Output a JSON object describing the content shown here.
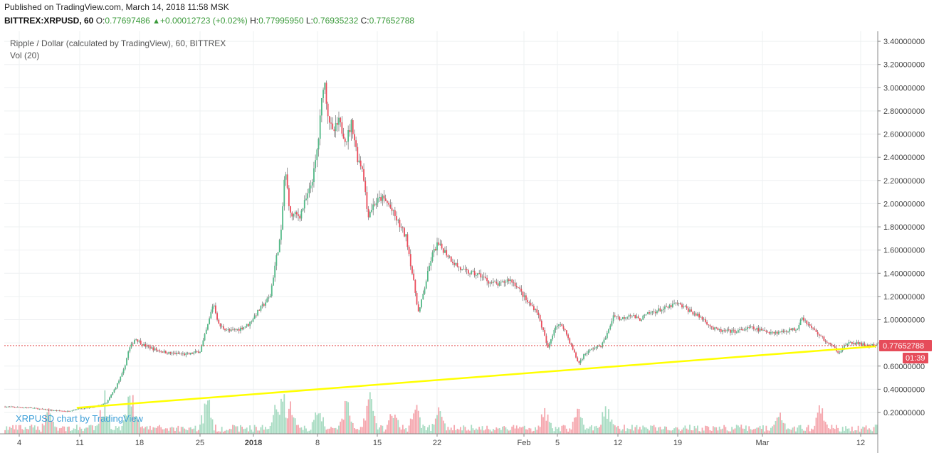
{
  "header": {
    "published": "Published on TradingView.com, March 14, 2018 11:58 MSK",
    "symbol": "BITTREX:XRPUSD, 60",
    "open_label": "O:",
    "open": "0.77697486",
    "change": "+0.00012723 (+0.02%)",
    "high_label": "H:",
    "high": "0.77995950",
    "low_label": "L:",
    "low": "0.76935232",
    "close_label": "C:",
    "close": "0.77652788"
  },
  "chart_data": {
    "type": "candlestick",
    "title": "Ripple / Dollar (calculated by TradingView), 60, BITTREX",
    "indicator": "Vol (20)",
    "watermark": "XRPUSD chart by TradingView",
    "ylim": [
      0.05,
      3.45
    ],
    "y_ticks": [
      "3.40000000",
      "3.20000000",
      "3.00000000",
      "2.80000000",
      "2.60000000",
      "2.40000000",
      "2.20000000",
      "2.00000000",
      "1.80000000",
      "1.60000000",
      "1.40000000",
      "1.20000000",
      "1.00000000",
      "0.80000000",
      "0.60000000",
      "0.40000000",
      "0.20000000"
    ],
    "x_ticks": [
      "4",
      "11",
      "18",
      "25",
      "2018",
      "8",
      "15",
      "22",
      "Feb",
      "5",
      "12",
      "19",
      "Mar",
      "12"
    ],
    "last_price": "0.77652788",
    "countdown": "01:39",
    "colors": {
      "up": "#53b987",
      "down": "#eb4d5c",
      "trendline": "#ffff00",
      "price_line": "#e23b3b"
    },
    "price_path": [
      [
        0.2,
        0.25
      ],
      [
        3.0,
        0.24
      ],
      [
        5.0,
        0.22
      ],
      [
        7.0,
        0.21
      ],
      [
        8.0,
        0.23
      ],
      [
        9.5,
        0.24
      ],
      [
        11.2,
        0.28
      ],
      [
        12.2,
        0.42
      ],
      [
        13.0,
        0.55
      ],
      [
        13.6,
        0.74
      ],
      [
        14.3,
        0.84
      ],
      [
        15.2,
        0.78
      ],
      [
        16.5,
        0.74
      ],
      [
        18.0,
        0.71
      ],
      [
        20.0,
        0.7
      ],
      [
        21.3,
        0.73
      ],
      [
        22.2,
        0.98
      ],
      [
        22.7,
        1.15
      ],
      [
        23.3,
        0.95
      ],
      [
        24.5,
        0.9
      ],
      [
        25.5,
        0.92
      ],
      [
        26.5,
        0.96
      ],
      [
        27.3,
        1.05
      ],
      [
        28.0,
        1.12
      ],
      [
        28.8,
        1.2
      ],
      [
        29.4,
        1.5
      ],
      [
        30.0,
        1.75
      ],
      [
        30.4,
        2.3
      ],
      [
        31.0,
        1.9
      ],
      [
        32.0,
        1.9
      ],
      [
        33.0,
        2.1
      ],
      [
        33.6,
        2.3
      ],
      [
        34.0,
        2.55
      ],
      [
        34.6,
        3.1
      ],
      [
        35.0,
        2.8
      ],
      [
        35.5,
        2.6
      ],
      [
        36.2,
        2.7
      ],
      [
        37.0,
        2.55
      ],
      [
        37.6,
        2.7
      ],
      [
        38.2,
        2.4
      ],
      [
        38.8,
        2.3
      ],
      [
        39.3,
        1.9
      ],
      [
        40.0,
        2.0
      ],
      [
        40.8,
        2.05
      ],
      [
        41.5,
        2.0
      ],
      [
        42.5,
        1.85
      ],
      [
        43.5,
        1.7
      ],
      [
        44.2,
        1.35
      ],
      [
        44.8,
        1.05
      ],
      [
        45.5,
        1.3
      ],
      [
        46.2,
        1.55
      ],
      [
        46.8,
        1.65
      ],
      [
        47.5,
        1.6
      ],
      [
        48.5,
        1.5
      ],
      [
        49.5,
        1.42
      ],
      [
        50.5,
        1.4
      ],
      [
        51.5,
        1.38
      ],
      [
        52.5,
        1.32
      ],
      [
        53.5,
        1.3
      ],
      [
        54.5,
        1.35
      ],
      [
        55.3,
        1.3
      ],
      [
        56.5,
        1.15
      ],
      [
        57.5,
        1.08
      ],
      [
        58.2,
        0.9
      ],
      [
        58.7,
        0.75
      ],
      [
        59.5,
        0.95
      ],
      [
        60.3,
        0.95
      ],
      [
        61.2,
        0.78
      ],
      [
        62.0,
        0.62
      ],
      [
        62.6,
        0.7
      ],
      [
        63.5,
        0.75
      ],
      [
        64.5,
        0.78
      ],
      [
        65.2,
        0.9
      ],
      [
        65.8,
        1.05
      ],
      [
        66.5,
        1.0
      ],
      [
        67.5,
        1.05
      ],
      [
        68.5,
        1.0
      ],
      [
        69.5,
        1.05
      ],
      [
        70.5,
        1.08
      ],
      [
        71.5,
        1.1
      ],
      [
        72.5,
        1.14
      ],
      [
        73.5,
        1.1
      ],
      [
        74.5,
        1.05
      ],
      [
        75.5,
        1.0
      ],
      [
        76.5,
        0.92
      ],
      [
        77.5,
        0.9
      ],
      [
        79.0,
        0.9
      ],
      [
        80.5,
        0.93
      ],
      [
        82.0,
        0.9
      ],
      [
        83.5,
        0.89
      ],
      [
        84.5,
        0.91
      ],
      [
        85.5,
        0.92
      ],
      [
        86.0,
        1.03
      ],
      [
        86.8,
        0.95
      ],
      [
        87.5,
        0.9
      ],
      [
        88.5,
        0.82
      ],
      [
        89.3,
        0.77
      ],
      [
        90.0,
        0.72
      ],
      [
        90.8,
        0.79
      ],
      [
        91.8,
        0.8
      ],
      [
        92.8,
        0.78
      ],
      [
        93.8,
        0.776
      ]
    ],
    "trendline": [
      [
        8.0,
        0.24
      ],
      [
        94.0,
        0.77
      ]
    ],
    "volume_spikes": [
      [
        5.0,
        0.3
      ],
      [
        11.0,
        0.5
      ],
      [
        13.5,
        0.55
      ],
      [
        14.0,
        0.6
      ],
      [
        22.0,
        0.45
      ],
      [
        29.5,
        0.4
      ],
      [
        30.3,
        0.6
      ],
      [
        31.0,
        0.45
      ],
      [
        34.0,
        0.35
      ],
      [
        37.0,
        0.4
      ],
      [
        39.5,
        0.55
      ],
      [
        42.0,
        0.3
      ],
      [
        44.5,
        0.35
      ],
      [
        47.0,
        0.3
      ],
      [
        58.5,
        0.3
      ],
      [
        62.0,
        0.25
      ],
      [
        65.0,
        0.35
      ],
      [
        83.5,
        0.25
      ],
      [
        88.0,
        0.3
      ]
    ]
  }
}
